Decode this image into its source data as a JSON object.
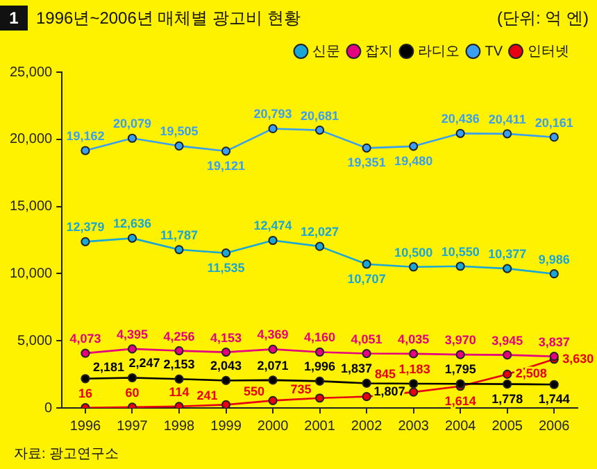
{
  "chart_data": {
    "type": "line",
    "title": "1996년~2006년 매체별 광고비 현황",
    "subtitle": "(단위: 억 엔)",
    "categories": [
      "1996",
      "1997",
      "1998",
      "1999",
      "2000",
      "2001",
      "2002",
      "2003",
      "2004",
      "2005",
      "2006"
    ],
    "series": [
      {
        "name": "신문",
        "color": "#1aa7d6",
        "values": [
          12379,
          12636,
          11787,
          11535,
          12474,
          12027,
          10707,
          10500,
          10550,
          10377,
          9986
        ],
        "value_labels": [
          "12,379",
          "12,636",
          "11,787",
          "11,535",
          "12,474",
          "12,027",
          "10,707",
          "10,500",
          "10,550",
          "10,377",
          "9,986"
        ]
      },
      {
        "name": "잡지",
        "color": "#e4007f",
        "values": [
          4073,
          4395,
          4256,
          4153,
          4369,
          4160,
          4051,
          4035,
          3970,
          3945,
          3837
        ],
        "value_labels": [
          "4,073",
          "4,395",
          "4,256",
          "4,153",
          "4,369",
          "4,160",
          "4,051",
          "4,035",
          "3,970",
          "3,945",
          "3,837"
        ]
      },
      {
        "name": "라디오",
        "color": "#000000",
        "values": [
          2181,
          2247,
          2153,
          2043,
          2071,
          1996,
          1837,
          1807,
          1795,
          1778,
          1744
        ],
        "value_labels": [
          "2,181",
          "2,247",
          "2,153",
          "2,043",
          "2,071",
          "1,996",
          "1,837",
          "1,807",
          "1,795",
          "1,778",
          "1,744"
        ]
      },
      {
        "name": "TV",
        "color": "#3a9ff0",
        "values": [
          19162,
          20079,
          19505,
          19121,
          20793,
          20681,
          19351,
          19480,
          20436,
          20411,
          20161
        ],
        "value_labels": [
          "19,162",
          "20,079",
          "19,505",
          "19,121",
          "20,793",
          "20,681",
          "19,351",
          "19,480",
          "20,436",
          "20,411",
          "20,161"
        ]
      },
      {
        "name": "인터넷",
        "color": "#e60012",
        "values": [
          16,
          60,
          114,
          241,
          550,
          735,
          845,
          1183,
          1614,
          2508,
          3630
        ],
        "value_labels": [
          "16",
          "60",
          "114",
          "241",
          "550",
          "735",
          "845",
          "1,183",
          "1,614",
          "2,508",
          "3,630"
        ]
      }
    ],
    "ylim": [
      0,
      25000
    ],
    "yticks": [
      {
        "value": 0,
        "label": "0"
      },
      {
        "value": 5000,
        "label": "5,000"
      },
      {
        "value": 10000,
        "label": "10,000"
      },
      {
        "value": 15000,
        "label": "15,000"
      },
      {
        "value": 20000,
        "label": "20,000"
      },
      {
        "value": 25000,
        "label": "25,000"
      }
    ],
    "grid": false,
    "legend": "top right",
    "marker": "circle",
    "line_style": "solid",
    "annotations": [
      "1",
      "자료: 광고연구소"
    ]
  }
}
